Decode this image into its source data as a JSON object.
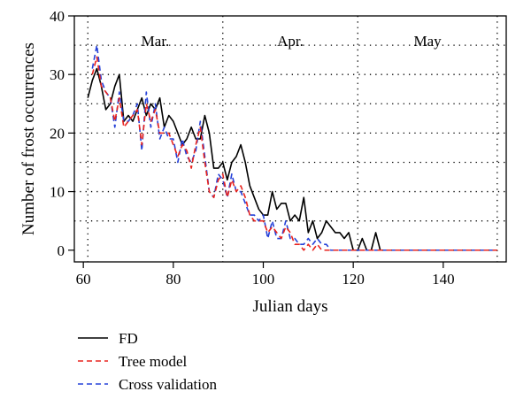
{
  "chart_data": {
    "type": "line",
    "xlabel": "Julian days",
    "ylabel": "Number of frost occurrences",
    "xlim": [
      58,
      154
    ],
    "ylim": [
      -2,
      40
    ],
    "xticks": [
      60,
      80,
      100,
      120,
      140
    ],
    "yticks": [
      0,
      10,
      20,
      30,
      40
    ],
    "grid": "dotted horizontal lines at 5,10,...,35; dotted vertical lines at month boundaries",
    "month_boundaries": [
      61,
      91,
      121,
      152
    ],
    "months": [
      {
        "label": "Mar.",
        "x": 76
      },
      {
        "label": "Apr.",
        "x": 106
      },
      {
        "label": "May",
        "x": 136.5
      }
    ],
    "legend_position": "below plot, left",
    "series": [
      {
        "name": "FD",
        "color": "#000000",
        "dash": "solid",
        "x": [
          61,
          62,
          63,
          64,
          65,
          66,
          67,
          68,
          69,
          70,
          71,
          72,
          73,
          74,
          75,
          76,
          77,
          78,
          79,
          80,
          81,
          82,
          83,
          84,
          85,
          86,
          87,
          88,
          89,
          90,
          91,
          92,
          93,
          94,
          95,
          96,
          97,
          98,
          99,
          100,
          101,
          102,
          103,
          104,
          105,
          106,
          107,
          108,
          109,
          110,
          111,
          112,
          113,
          114,
          115,
          116,
          117,
          118,
          119,
          120,
          121,
          122,
          123,
          124,
          125,
          126,
          127,
          128,
          129,
          130,
          131,
          132,
          133,
          134,
          135,
          136,
          137,
          138,
          139,
          140,
          141,
          142,
          143,
          144,
          145,
          146,
          147,
          148,
          149,
          150,
          151,
          152
        ],
        "y": [
          26,
          29,
          31,
          28,
          24,
          25,
          28,
          30,
          22,
          23,
          22,
          24,
          26,
          23,
          25,
          24,
          26,
          21,
          23,
          22,
          20,
          18,
          19,
          21,
          19,
          19,
          23,
          20,
          14,
          14,
          15,
          12,
          15,
          16,
          18,
          15,
          11,
          9,
          7,
          6,
          6,
          10,
          7,
          8,
          8,
          5,
          6,
          5,
          9,
          3,
          5,
          2,
          3,
          5,
          4,
          3,
          3,
          2,
          3,
          0,
          0,
          2,
          0,
          0,
          3,
          0,
          0,
          0,
          0,
          0,
          0,
          0,
          0,
          0,
          0,
          0,
          0,
          0,
          0,
          0,
          0,
          0,
          0,
          0,
          0,
          0,
          0,
          0,
          0,
          0,
          0,
          0
        ]
      },
      {
        "name": "Tree model",
        "color": "#e8231e",
        "dash": "dashed",
        "x": [
          62,
          63,
          64,
          65,
          66,
          67,
          68,
          69,
          70,
          71,
          72,
          73,
          74,
          75,
          76,
          77,
          78,
          79,
          80,
          81,
          82,
          83,
          84,
          85,
          86,
          87,
          88,
          89,
          90,
          91,
          92,
          93,
          94,
          95,
          96,
          97,
          98,
          99,
          100,
          101,
          102,
          103,
          104,
          105,
          106,
          107,
          108,
          109,
          110,
          111,
          112,
          113,
          114,
          115,
          116,
          117,
          118,
          119,
          120,
          121,
          122,
          123,
          124,
          125,
          126,
          127,
          128,
          129,
          130,
          131,
          132,
          133,
          134,
          135,
          136,
          137,
          138,
          139,
          140,
          141,
          142,
          143,
          144,
          145,
          146,
          147,
          148,
          149,
          150,
          151,
          152
        ],
        "y": [
          30,
          33,
          28,
          27,
          26,
          22,
          26,
          21,
          22,
          23,
          24,
          18,
          25,
          22,
          24,
          20,
          20,
          20,
          18,
          16,
          18,
          17,
          14,
          18,
          21,
          15,
          10,
          9,
          12,
          13,
          9,
          12,
          10,
          11,
          9,
          6,
          5,
          5,
          5,
          3,
          4,
          3,
          2,
          4,
          3,
          1,
          1,
          0,
          1,
          0,
          1,
          0,
          0,
          0,
          0,
          0,
          0,
          0,
          0,
          0,
          0,
          0,
          0,
          0,
          0,
          0,
          0,
          0,
          0,
          0,
          0,
          0,
          0,
          0,
          0,
          0,
          0,
          0,
          0,
          0,
          0,
          0,
          0,
          0,
          0,
          0,
          0,
          0,
          0,
          0,
          0
        ]
      },
      {
        "name": "Cross validation",
        "color": "#2440d8",
        "dash": "dashed",
        "x": [
          62,
          63,
          64,
          65,
          66,
          67,
          68,
          69,
          70,
          71,
          72,
          73,
          74,
          75,
          76,
          77,
          78,
          79,
          80,
          81,
          82,
          83,
          84,
          85,
          86,
          87,
          88,
          89,
          90,
          91,
          92,
          93,
          94,
          95,
          96,
          97,
          98,
          99,
          100,
          101,
          102,
          103,
          104,
          105,
          106,
          107,
          108,
          109,
          110,
          111,
          112,
          113,
          114,
          115,
          116,
          117,
          118,
          119,
          120,
          121,
          122,
          123,
          124,
          125,
          126,
          127,
          128,
          129,
          130,
          131,
          132,
          133,
          134,
          135,
          136,
          137,
          138,
          139,
          140,
          141,
          142,
          143,
          144,
          145,
          146,
          147,
          148,
          149,
          150,
          151,
          152
        ],
        "y": [
          31,
          35,
          29,
          27,
          26,
          21,
          27,
          22,
          22,
          23,
          25,
          17,
          27,
          21,
          25,
          19,
          21,
          19,
          19,
          15,
          19,
          16,
          15,
          17,
          22,
          16,
          10,
          9,
          13,
          12,
          9,
          13,
          10,
          10,
          8,
          6,
          6,
          5,
          6,
          2,
          5,
          2,
          2,
          5,
          2,
          2,
          1,
          1,
          2,
          1,
          2,
          1,
          1,
          0,
          0,
          0,
          0,
          0,
          0,
          0,
          0,
          0,
          0,
          0,
          0,
          0,
          0,
          0,
          0,
          0,
          0,
          0,
          0,
          0,
          0,
          0,
          0,
          0,
          0,
          0,
          0,
          0,
          0,
          0,
          0,
          0,
          0,
          0,
          0,
          0,
          0
        ]
      }
    ]
  }
}
